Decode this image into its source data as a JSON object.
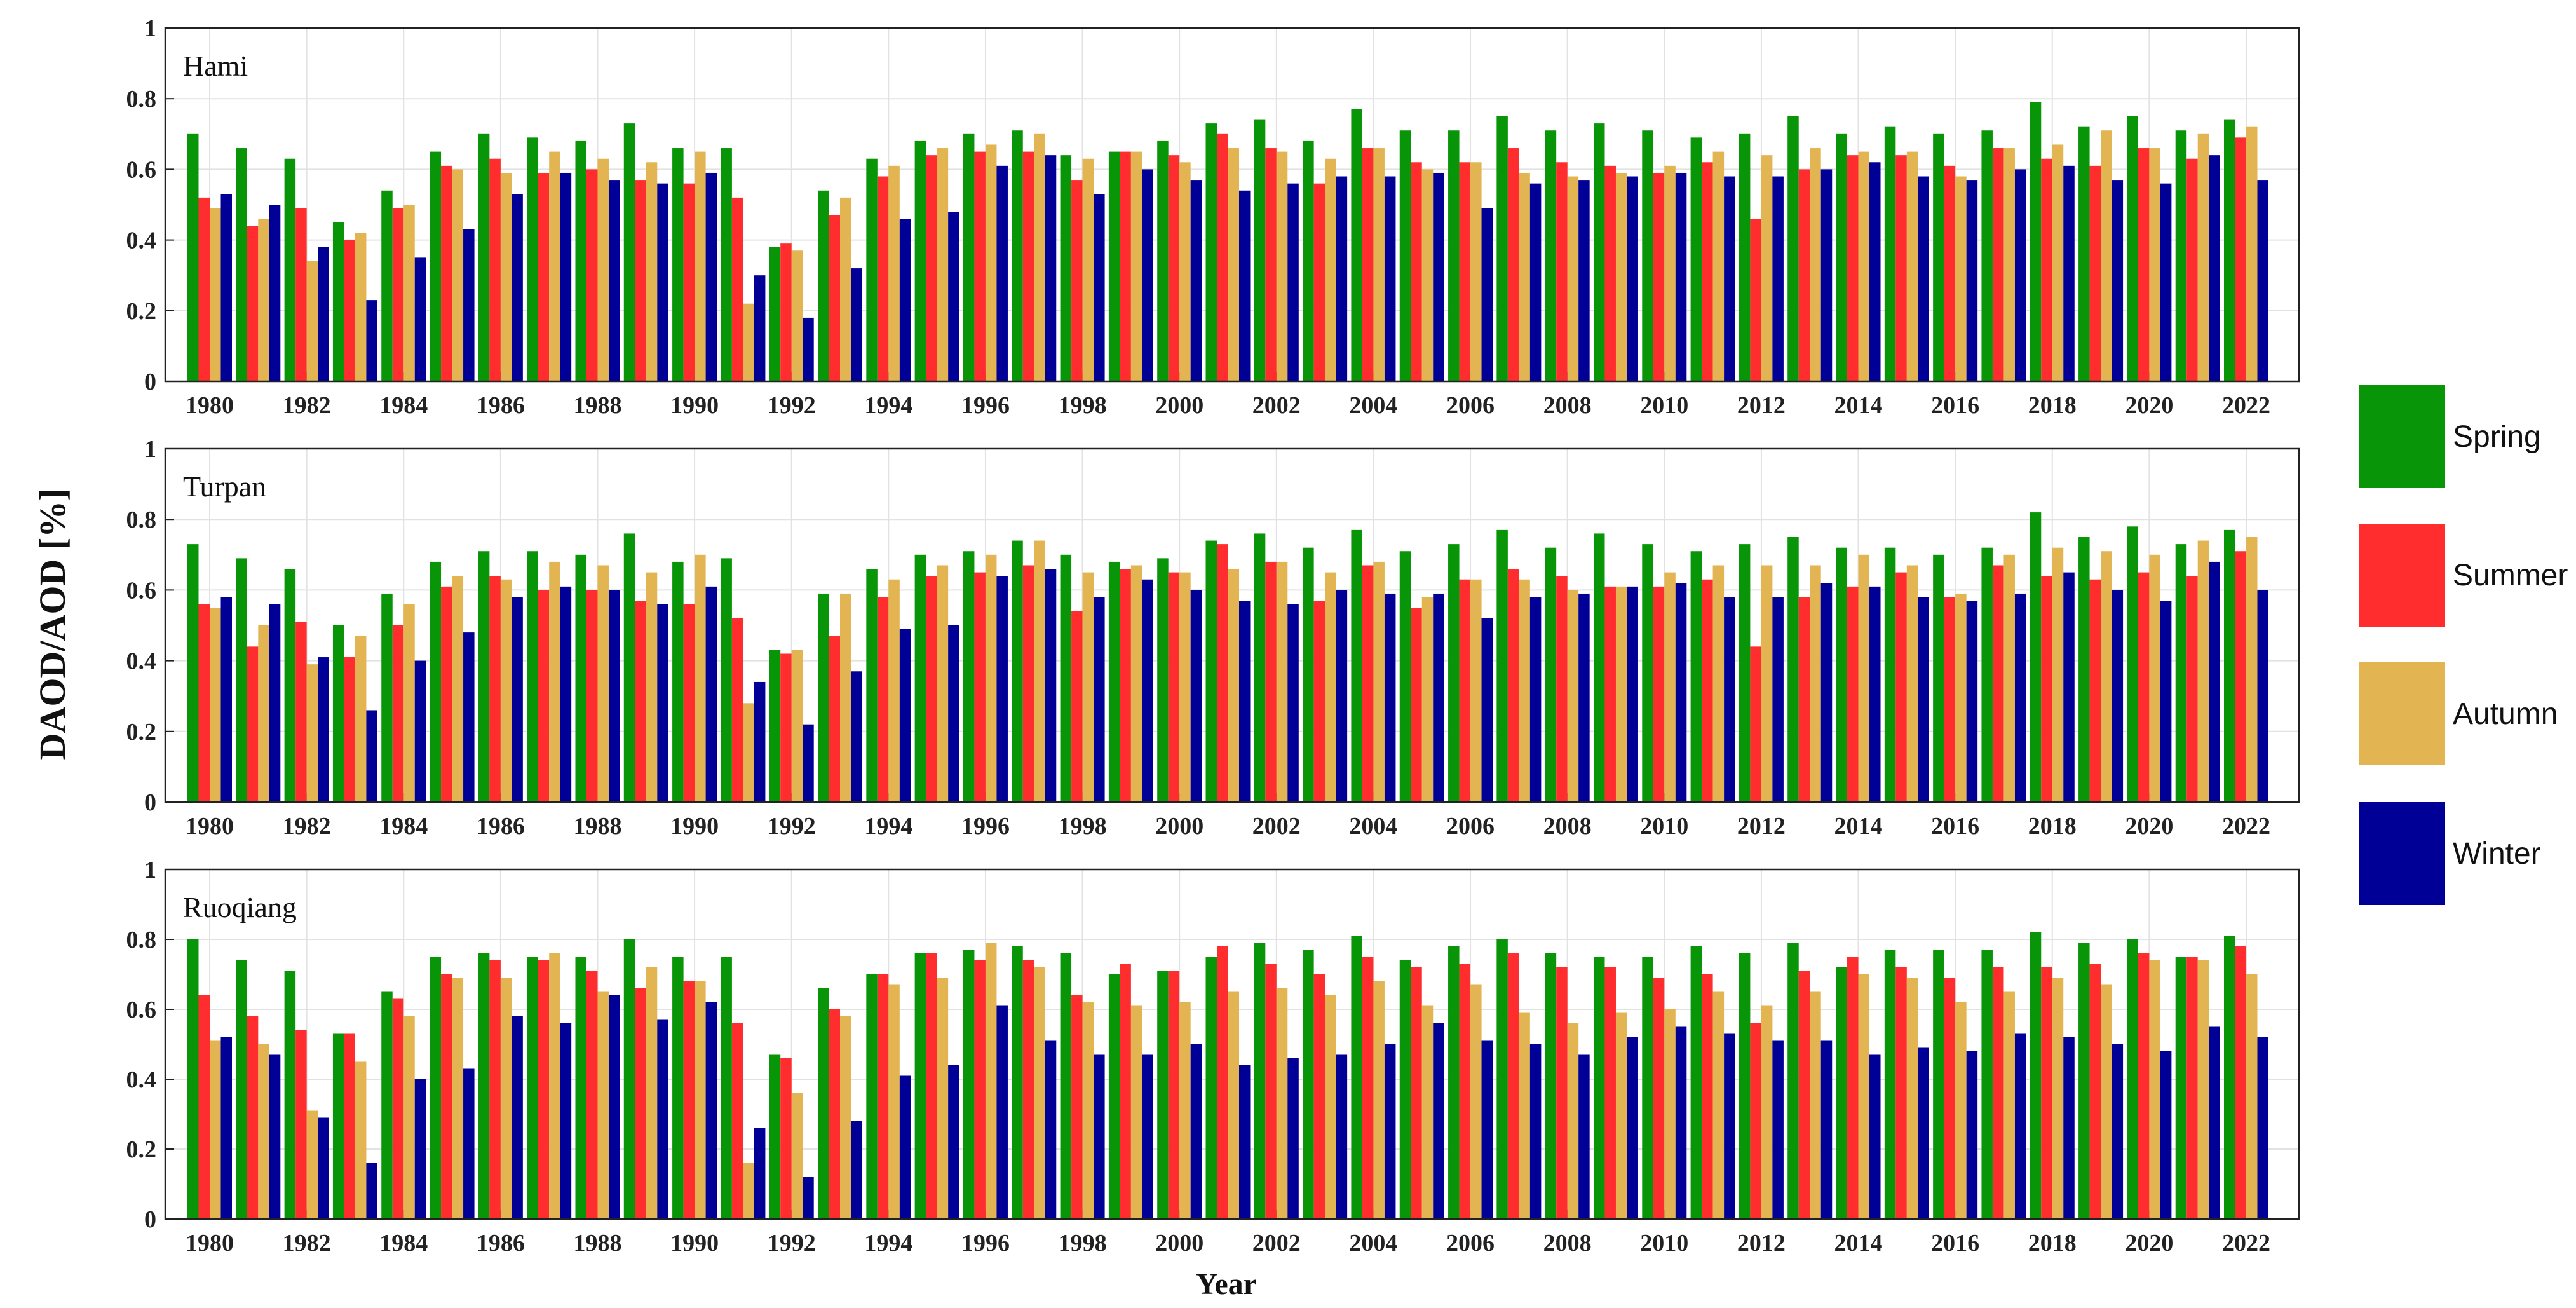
{
  "chart_data": {
    "type": "bar",
    "ylabel": "DAOD/AOD [%]",
    "xlabel": "Year",
    "ylim": [
      0,
      1
    ],
    "yticks": [
      0,
      0.2,
      0.4,
      0.6,
      0.8,
      1
    ],
    "ytick_labels": [
      "0",
      "0.2",
      "0.4",
      "0.6",
      "0.8",
      "1"
    ],
    "grid": true,
    "legend_position": "right",
    "years": [
      1980,
      1981,
      1982,
      1983,
      1984,
      1985,
      1986,
      1987,
      1988,
      1989,
      1990,
      1991,
      1992,
      1993,
      1994,
      1995,
      1996,
      1997,
      1998,
      1999,
      2000,
      2001,
      2002,
      2003,
      2004,
      2005,
      2006,
      2007,
      2008,
      2009,
      2010,
      2011,
      2012,
      2013,
      2014,
      2015,
      2016,
      2017,
      2018,
      2019,
      2020,
      2021,
      2022
    ],
    "xtick_labels": [
      "1980",
      "1982",
      "1984",
      "1986",
      "1988",
      "1990",
      "1992",
      "1994",
      "1996",
      "1998",
      "2000",
      "2002",
      "2004",
      "2006",
      "2008",
      "2010",
      "2012",
      "2014",
      "2016",
      "2018",
      "2020",
      "2022"
    ],
    "series_names": [
      "Spring",
      "Summer",
      "Autumn",
      "Winter"
    ],
    "series_colors": [
      "#089608",
      "#ff2d2d",
      "#e2b552",
      "#000096"
    ],
    "panels": [
      {
        "station": "Hami",
        "series": [
          {
            "name": "Spring",
            "values": [
              0.7,
              0.66,
              0.63,
              0.45,
              0.54,
              0.65,
              0.7,
              0.69,
              0.68,
              0.73,
              0.66,
              0.66,
              0.38,
              0.54,
              0.63,
              0.68,
              0.7,
              0.71,
              0.64,
              0.65,
              0.68,
              0.73,
              0.74,
              0.68,
              0.77,
              0.71,
              0.71,
              0.75,
              0.71,
              0.73,
              0.71,
              0.69,
              0.7,
              0.75,
              0.7,
              0.72,
              0.7,
              0.71,
              0.79,
              0.72,
              0.75,
              0.71,
              0.74
            ]
          },
          {
            "name": "Summer",
            "values": [
              0.52,
              0.44,
              0.49,
              0.4,
              0.49,
              0.61,
              0.63,
              0.59,
              0.6,
              0.57,
              0.56,
              0.52,
              0.39,
              0.47,
              0.58,
              0.64,
              0.65,
              0.65,
              0.57,
              0.65,
              0.64,
              0.7,
              0.66,
              0.56,
              0.66,
              0.62,
              0.62,
              0.66,
              0.62,
              0.61,
              0.59,
              0.62,
              0.46,
              0.6,
              0.64,
              0.64,
              0.61,
              0.66,
              0.63,
              0.61,
              0.66,
              0.63,
              0.69
            ]
          },
          {
            "name": "Autumn",
            "values": [
              0.49,
              0.46,
              0.34,
              0.42,
              0.5,
              0.6,
              0.59,
              0.65,
              0.63,
              0.62,
              0.65,
              0.22,
              0.37,
              0.52,
              0.61,
              0.66,
              0.67,
              0.7,
              0.63,
              0.65,
              0.62,
              0.66,
              0.65,
              0.63,
              0.66,
              0.6,
              0.62,
              0.59,
              0.58,
              0.59,
              0.61,
              0.65,
              0.64,
              0.66,
              0.65,
              0.65,
              0.58,
              0.66,
              0.67,
              0.71,
              0.66,
              0.7,
              0.72
            ]
          },
          {
            "name": "Winter",
            "values": [
              0.53,
              0.5,
              0.38,
              0.23,
              0.35,
              0.43,
              0.53,
              0.59,
              0.57,
              0.56,
              0.59,
              0.3,
              0.18,
              0.32,
              0.46,
              0.48,
              0.61,
              0.64,
              0.53,
              0.6,
              0.57,
              0.54,
              0.56,
              0.58,
              0.58,
              0.59,
              0.49,
              0.56,
              0.57,
              0.58,
              0.59,
              0.58,
              0.58,
              0.6,
              0.62,
              0.58,
              0.57,
              0.6,
              0.61,
              0.57,
              0.56,
              0.64,
              0.57
            ]
          }
        ]
      },
      {
        "station": "Turpan",
        "series": [
          {
            "name": "Spring",
            "values": [
              0.73,
              0.69,
              0.66,
              0.5,
              0.59,
              0.68,
              0.71,
              0.71,
              0.7,
              0.76,
              0.68,
              0.69,
              0.43,
              0.59,
              0.66,
              0.7,
              0.71,
              0.74,
              0.7,
              0.68,
              0.69,
              0.74,
              0.76,
              0.72,
              0.77,
              0.71,
              0.73,
              0.77,
              0.72,
              0.76,
              0.73,
              0.71,
              0.73,
              0.75,
              0.72,
              0.72,
              0.7,
              0.72,
              0.82,
              0.75,
              0.78,
              0.73,
              0.77
            ]
          },
          {
            "name": "Summer",
            "values": [
              0.56,
              0.44,
              0.51,
              0.41,
              0.5,
              0.61,
              0.64,
              0.6,
              0.6,
              0.57,
              0.56,
              0.52,
              0.42,
              0.47,
              0.58,
              0.64,
              0.65,
              0.67,
              0.54,
              0.66,
              0.65,
              0.73,
              0.68,
              0.57,
              0.67,
              0.55,
              0.63,
              0.66,
              0.64,
              0.61,
              0.61,
              0.63,
              0.44,
              0.58,
              0.61,
              0.65,
              0.58,
              0.67,
              0.64,
              0.63,
              0.65,
              0.64,
              0.71
            ]
          },
          {
            "name": "Autumn",
            "values": [
              0.55,
              0.5,
              0.39,
              0.47,
              0.56,
              0.64,
              0.63,
              0.68,
              0.67,
              0.65,
              0.7,
              0.28,
              0.43,
              0.59,
              0.63,
              0.67,
              0.7,
              0.74,
              0.65,
              0.67,
              0.65,
              0.66,
              0.68,
              0.65,
              0.68,
              0.58,
              0.63,
              0.63,
              0.6,
              0.61,
              0.65,
              0.67,
              0.67,
              0.67,
              0.7,
              0.67,
              0.59,
              0.7,
              0.72,
              0.71,
              0.7,
              0.74,
              0.75
            ]
          },
          {
            "name": "Winter",
            "values": [
              0.58,
              0.56,
              0.41,
              0.26,
              0.4,
              0.48,
              0.58,
              0.61,
              0.6,
              0.56,
              0.61,
              0.34,
              0.22,
              0.37,
              0.49,
              0.5,
              0.64,
              0.66,
              0.58,
              0.63,
              0.6,
              0.57,
              0.56,
              0.6,
              0.59,
              0.59,
              0.52,
              0.58,
              0.59,
              0.61,
              0.62,
              0.58,
              0.58,
              0.62,
              0.61,
              0.58,
              0.57,
              0.59,
              0.65,
              0.6,
              0.57,
              0.68,
              0.6
            ]
          }
        ]
      },
      {
        "station": "Ruoqiang",
        "series": [
          {
            "name": "Spring",
            "values": [
              0.8,
              0.74,
              0.71,
              0.53,
              0.65,
              0.75,
              0.76,
              0.75,
              0.75,
              0.8,
              0.75,
              0.75,
              0.47,
              0.66,
              0.7,
              0.76,
              0.77,
              0.78,
              0.76,
              0.7,
              0.71,
              0.75,
              0.79,
              0.77,
              0.81,
              0.74,
              0.78,
              0.8,
              0.76,
              0.75,
              0.75,
              0.78,
              0.76,
              0.79,
              0.72,
              0.77,
              0.77,
              0.77,
              0.82,
              0.79,
              0.8,
              0.75,
              0.81
            ]
          },
          {
            "name": "Summer",
            "values": [
              0.64,
              0.58,
              0.54,
              0.53,
              0.63,
              0.7,
              0.74,
              0.74,
              0.71,
              0.66,
              0.68,
              0.56,
              0.46,
              0.6,
              0.7,
              0.76,
              0.74,
              0.74,
              0.64,
              0.73,
              0.71,
              0.78,
              0.73,
              0.7,
              0.75,
              0.72,
              0.73,
              0.76,
              0.72,
              0.72,
              0.69,
              0.7,
              0.56,
              0.71,
              0.75,
              0.72,
              0.69,
              0.72,
              0.72,
              0.73,
              0.76,
              0.75,
              0.78
            ]
          },
          {
            "name": "Autumn",
            "values": [
              0.51,
              0.5,
              0.31,
              0.45,
              0.58,
              0.69,
              0.69,
              0.76,
              0.65,
              0.72,
              0.68,
              0.16,
              0.36,
              0.58,
              0.67,
              0.69,
              0.79,
              0.72,
              0.62,
              0.61,
              0.62,
              0.65,
              0.66,
              0.64,
              0.68,
              0.61,
              0.67,
              0.59,
              0.56,
              0.59,
              0.6,
              0.65,
              0.61,
              0.65,
              0.7,
              0.69,
              0.62,
              0.65,
              0.69,
              0.67,
              0.74,
              0.74,
              0.7
            ]
          },
          {
            "name": "Winter",
            "values": [
              0.52,
              0.47,
              0.29,
              0.16,
              0.4,
              0.43,
              0.58,
              0.56,
              0.64,
              0.57,
              0.62,
              0.26,
              0.12,
              0.28,
              0.41,
              0.44,
              0.61,
              0.51,
              0.47,
              0.47,
              0.5,
              0.44,
              0.46,
              0.47,
              0.5,
              0.56,
              0.51,
              0.5,
              0.47,
              0.52,
              0.55,
              0.53,
              0.51,
              0.51,
              0.47,
              0.49,
              0.48,
              0.53,
              0.52,
              0.5,
              0.48,
              0.55,
              0.52
            ]
          }
        ]
      }
    ]
  }
}
